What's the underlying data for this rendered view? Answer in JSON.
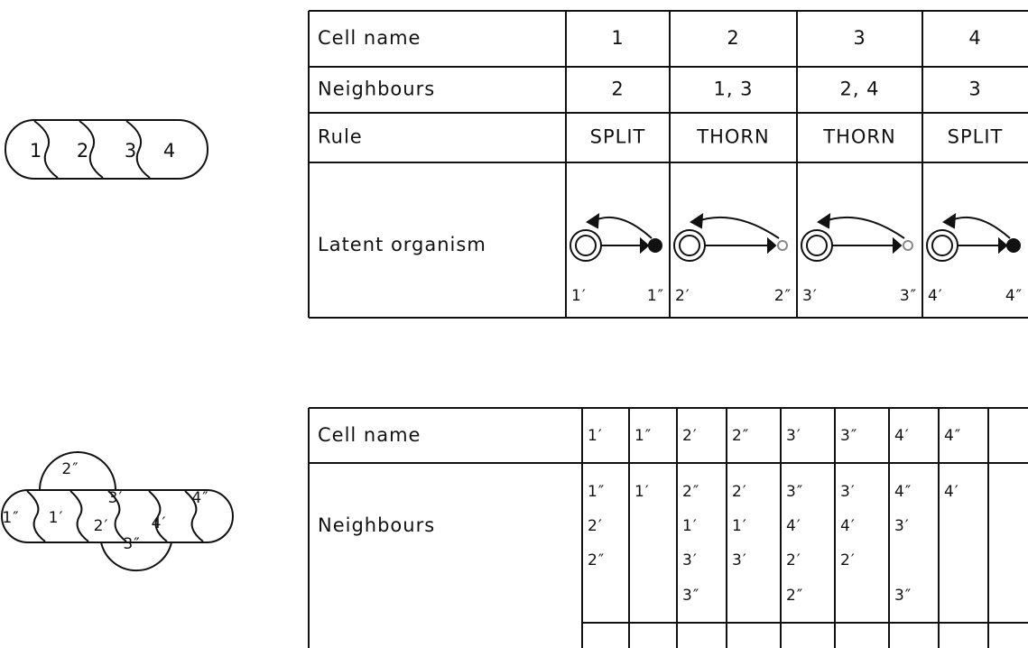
{
  "top_diagram": {
    "cells": [
      "1",
      "2",
      "3",
      "4"
    ]
  },
  "top_table": {
    "rows": [
      [
        "Cell name",
        "1",
        "2",
        "3",
        "4"
      ],
      [
        "Neighbours",
        "2",
        "1, 3",
        "2, 4",
        "3"
      ],
      [
        "Rule",
        "SPLIT",
        "THORN",
        "THORN",
        "SPLIT"
      ]
    ],
    "latent": {
      "label": "Latent organism",
      "cells": [
        [
          "1′",
          "1″"
        ],
        [
          "2′",
          "2″"
        ],
        [
          "3′",
          "3″"
        ],
        [
          "4′",
          "4″"
        ]
      ]
    }
  },
  "bottom_diagram": {
    "labels": [
      "2″",
      "1″",
      "1′",
      "3′",
      "2′",
      "4′",
      "4″",
      "3″"
    ]
  },
  "bottom_table": {
    "header": [
      "Cell name",
      "1′",
      "1″",
      "2′",
      "2″",
      "3′",
      "3″",
      "4′",
      "4″"
    ],
    "neighbours_label": "Neighbours",
    "neighbours": [
      [
        "1″",
        "2′",
        "2″",
        null
      ],
      [
        "1′",
        null,
        null,
        null
      ],
      [
        "2″",
        "1′",
        "3′",
        "3″"
      ],
      [
        "2′",
        "1′",
        "3′",
        null
      ],
      [
        "3″",
        "4′",
        "2′",
        "2″"
      ],
      [
        "3′",
        "4′",
        "2′",
        null
      ],
      [
        "4″",
        "3′",
        null,
        "3″"
      ],
      [
        "4′",
        null,
        null,
        null
      ]
    ]
  }
}
